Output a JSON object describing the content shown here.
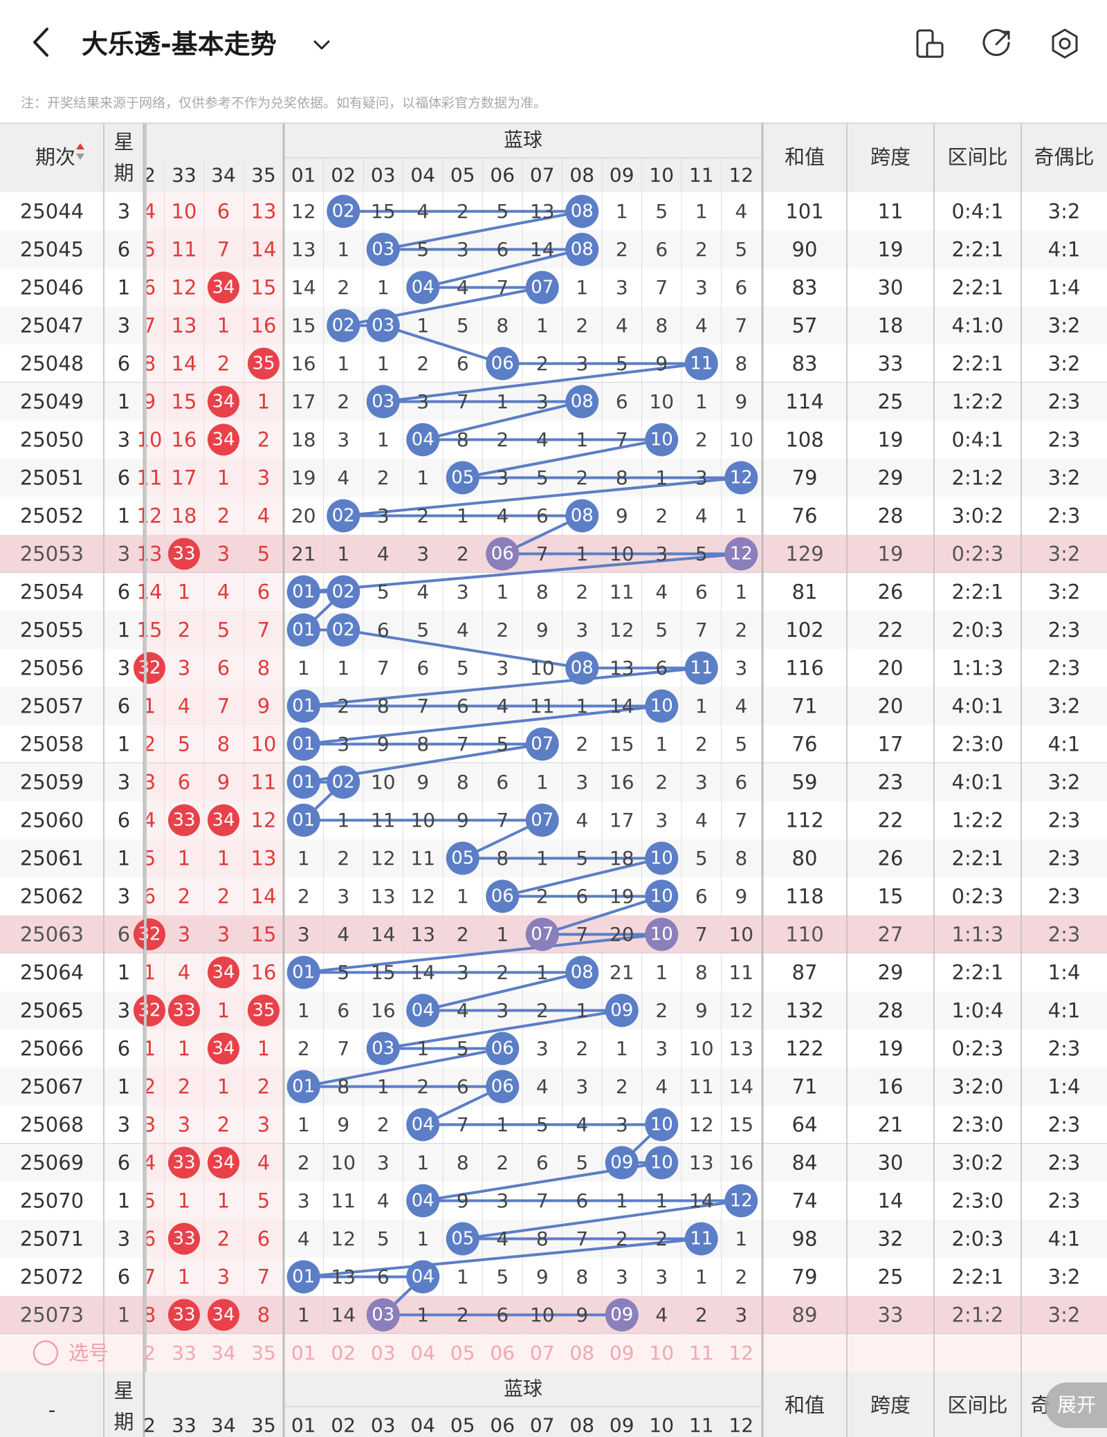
{
  "header": {
    "title": "大乐透-基本走势",
    "icons": [
      "chevron-left-icon",
      "chevron-down-icon",
      "phone-rotate-icon",
      "share-icon",
      "settings-icon"
    ]
  },
  "note": "注：开奖结果来源于网络，仅供参考不作为兑奖依据。如有疑问，以福体彩官方数据为准。",
  "table": {
    "col_period": "期次",
    "col_week": "星期",
    "week_top": "星",
    "week_bottom": "期",
    "blue_group": "蓝球",
    "front_cols": [
      "2",
      "33",
      "34",
      "35"
    ],
    "blue_cols": [
      "01",
      "02",
      "03",
      "04",
      "05",
      "06",
      "07",
      "08",
      "09",
      "10",
      "11",
      "12"
    ],
    "col_sum": "和值",
    "col_span": "跨度",
    "col_zone": "区间比",
    "col_odd": "奇偶比",
    "odd_cut": "奇",
    "footer_period": "-",
    "select_label": "选号",
    "rows": [
      {
        "period": "25044",
        "week": "3",
        "front": [
          "4",
          "10",
          "6",
          "13"
        ],
        "frontHit": [
          false,
          false,
          false,
          false
        ],
        "blue": [
          "12",
          "02",
          "15",
          "4",
          "2",
          "5",
          "13",
          "08",
          "1",
          "5",
          "1",
          "4"
        ],
        "hit": [
          2,
          8
        ],
        "sum": "101",
        "span": "11",
        "zone": "0:4:1",
        "odd": "3:2",
        "hl": false
      },
      {
        "period": "25045",
        "week": "6",
        "front": [
          "5",
          "11",
          "7",
          "14"
        ],
        "frontHit": [
          false,
          false,
          false,
          false
        ],
        "blue": [
          "13",
          "1",
          "03",
          "5",
          "3",
          "6",
          "14",
          "08",
          "2",
          "6",
          "2",
          "5"
        ],
        "hit": [
          3,
          8
        ],
        "sum": "90",
        "span": "19",
        "zone": "2:2:1",
        "odd": "4:1",
        "hl": false
      },
      {
        "period": "25046",
        "week": "1",
        "front": [
          "6",
          "12",
          "34",
          "15"
        ],
        "frontHit": [
          false,
          false,
          true,
          false
        ],
        "blue": [
          "14",
          "2",
          "1",
          "04",
          "4",
          "7",
          "07",
          "1",
          "3",
          "7",
          "3",
          "6"
        ],
        "hit": [
          4,
          7
        ],
        "sum": "83",
        "span": "30",
        "zone": "2:2:1",
        "odd": "1:4",
        "hl": false
      },
      {
        "period": "25047",
        "week": "3",
        "front": [
          "7",
          "13",
          "1",
          "16"
        ],
        "frontHit": [
          false,
          false,
          false,
          false
        ],
        "blue": [
          "15",
          "02",
          "03",
          "1",
          "5",
          "8",
          "1",
          "2",
          "4",
          "8",
          "4",
          "7"
        ],
        "hit": [
          2,
          3
        ],
        "sum": "57",
        "span": "18",
        "zone": "4:1:0",
        "odd": "3:2",
        "hl": false
      },
      {
        "period": "25048",
        "week": "6",
        "front": [
          "8",
          "14",
          "2",
          "35"
        ],
        "frontHit": [
          false,
          false,
          false,
          true
        ],
        "blue": [
          "16",
          "1",
          "1",
          "2",
          "6",
          "06",
          "2",
          "3",
          "5",
          "9",
          "11",
          "8"
        ],
        "hit": [
          6,
          11
        ],
        "sum": "83",
        "span": "33",
        "zone": "2:2:1",
        "odd": "3:2",
        "hl": false
      },
      {
        "period": "25049",
        "week": "1",
        "front": [
          "9",
          "15",
          "34",
          "1"
        ],
        "frontHit": [
          false,
          false,
          true,
          false
        ],
        "blue": [
          "17",
          "2",
          "03",
          "3",
          "7",
          "1",
          "3",
          "08",
          "6",
          "10",
          "1",
          "9"
        ],
        "hit": [
          3,
          8
        ],
        "sum": "114",
        "span": "25",
        "zone": "1:2:2",
        "odd": "2:3",
        "hl": false
      },
      {
        "period": "25050",
        "week": "3",
        "front": [
          "10",
          "16",
          "34",
          "2"
        ],
        "frontHit": [
          false,
          false,
          true,
          false
        ],
        "blue": [
          "18",
          "3",
          "1",
          "04",
          "8",
          "2",
          "4",
          "1",
          "7",
          "10",
          "2",
          "10"
        ],
        "hit": [
          4,
          10
        ],
        "sum": "108",
        "span": "19",
        "zone": "0:4:1",
        "odd": "2:3",
        "hl": false
      },
      {
        "period": "25051",
        "week": "6",
        "front": [
          "11",
          "17",
          "1",
          "3"
        ],
        "frontHit": [
          false,
          false,
          false,
          false
        ],
        "blue": [
          "19",
          "4",
          "2",
          "1",
          "05",
          "3",
          "5",
          "2",
          "8",
          "1",
          "3",
          "12"
        ],
        "hit": [
          5,
          12
        ],
        "sum": "79",
        "span": "29",
        "zone": "2:1:2",
        "odd": "3:2",
        "hl": false
      },
      {
        "period": "25052",
        "week": "1",
        "front": [
          "12",
          "18",
          "2",
          "4"
        ],
        "frontHit": [
          false,
          false,
          false,
          false
        ],
        "blue": [
          "20",
          "02",
          "3",
          "2",
          "1",
          "4",
          "6",
          "08",
          "9",
          "2",
          "4",
          "1"
        ],
        "hit": [
          2,
          8
        ],
        "sum": "76",
        "span": "28",
        "zone": "3:0:2",
        "odd": "2:3",
        "hl": false
      },
      {
        "period": "25053",
        "week": "3",
        "front": [
          "13",
          "33",
          "3",
          "5"
        ],
        "frontHit": [
          false,
          true,
          false,
          false
        ],
        "blue": [
          "21",
          "1",
          "4",
          "3",
          "2",
          "06",
          "7",
          "1",
          "10",
          "3",
          "5",
          "12"
        ],
        "hit": [
          6,
          12
        ],
        "sum": "129",
        "span": "19",
        "zone": "0:2:3",
        "odd": "3:2",
        "hl": true
      },
      {
        "period": "25054",
        "week": "6",
        "front": [
          "14",
          "1",
          "4",
          "6"
        ],
        "frontHit": [
          false,
          false,
          false,
          false
        ],
        "blue": [
          "01",
          "02",
          "5",
          "4",
          "3",
          "1",
          "8",
          "2",
          "11",
          "4",
          "6",
          "1"
        ],
        "hit": [
          1,
          2
        ],
        "sum": "81",
        "span": "26",
        "zone": "2:2:1",
        "odd": "3:2",
        "hl": false
      },
      {
        "period": "25055",
        "week": "1",
        "front": [
          "15",
          "2",
          "5",
          "7"
        ],
        "frontHit": [
          false,
          false,
          false,
          false
        ],
        "blue": [
          "01",
          "02",
          "6",
          "5",
          "4",
          "2",
          "9",
          "3",
          "12",
          "5",
          "7",
          "2"
        ],
        "hit": [
          1,
          2
        ],
        "sum": "102",
        "span": "22",
        "zone": "2:0:3",
        "odd": "2:3",
        "hl": false
      },
      {
        "period": "25056",
        "week": "3",
        "front": [
          "32",
          "3",
          "6",
          "8"
        ],
        "frontHit": [
          true,
          false,
          false,
          false
        ],
        "blue": [
          "1",
          "1",
          "7",
          "6",
          "5",
          "3",
          "10",
          "08",
          "13",
          "6",
          "11",
          "3"
        ],
        "hit": [
          8,
          11
        ],
        "sum": "116",
        "span": "20",
        "zone": "1:1:3",
        "odd": "2:3",
        "hl": false
      },
      {
        "period": "25057",
        "week": "6",
        "front": [
          "1",
          "4",
          "7",
          "9"
        ],
        "frontHit": [
          false,
          false,
          false,
          false
        ],
        "blue": [
          "01",
          "2",
          "8",
          "7",
          "6",
          "4",
          "11",
          "1",
          "14",
          "10",
          "1",
          "4"
        ],
        "hit": [
          1,
          10
        ],
        "sum": "71",
        "span": "20",
        "zone": "4:0:1",
        "odd": "3:2",
        "hl": false
      },
      {
        "period": "25058",
        "week": "1",
        "front": [
          "2",
          "5",
          "8",
          "10"
        ],
        "frontHit": [
          false,
          false,
          false,
          false
        ],
        "blue": [
          "01",
          "3",
          "9",
          "8",
          "7",
          "5",
          "07",
          "2",
          "15",
          "1",
          "2",
          "5"
        ],
        "hit": [
          1,
          7
        ],
        "sum": "76",
        "span": "17",
        "zone": "2:3:0",
        "odd": "4:1",
        "hl": false
      },
      {
        "period": "25059",
        "week": "3",
        "front": [
          "3",
          "6",
          "9",
          "11"
        ],
        "frontHit": [
          false,
          false,
          false,
          false
        ],
        "blue": [
          "01",
          "02",
          "10",
          "9",
          "8",
          "6",
          "1",
          "3",
          "16",
          "2",
          "3",
          "6"
        ],
        "hit": [
          1,
          2
        ],
        "sum": "59",
        "span": "23",
        "zone": "4:0:1",
        "odd": "3:2",
        "hl": false
      },
      {
        "period": "25060",
        "week": "6",
        "front": [
          "4",
          "33",
          "34",
          "12"
        ],
        "frontHit": [
          false,
          true,
          true,
          false
        ],
        "blue": [
          "01",
          "1",
          "11",
          "10",
          "9",
          "7",
          "07",
          "4",
          "17",
          "3",
          "4",
          "7"
        ],
        "hit": [
          1,
          7
        ],
        "sum": "112",
        "span": "22",
        "zone": "1:2:2",
        "odd": "2:3",
        "hl": false
      },
      {
        "period": "25061",
        "week": "1",
        "front": [
          "5",
          "1",
          "1",
          "13"
        ],
        "frontHit": [
          false,
          false,
          false,
          false
        ],
        "blue": [
          "1",
          "2",
          "12",
          "11",
          "05",
          "8",
          "1",
          "5",
          "18",
          "10",
          "5",
          "8"
        ],
        "hit": [
          5,
          10
        ],
        "sum": "80",
        "span": "26",
        "zone": "2:2:1",
        "odd": "2:3",
        "hl": false
      },
      {
        "period": "25062",
        "week": "3",
        "front": [
          "6",
          "2",
          "2",
          "14"
        ],
        "frontHit": [
          false,
          false,
          false,
          false
        ],
        "blue": [
          "2",
          "3",
          "13",
          "12",
          "1",
          "06",
          "2",
          "6",
          "19",
          "10",
          "6",
          "9"
        ],
        "hit": [
          6,
          10
        ],
        "sum": "118",
        "span": "15",
        "zone": "0:2:3",
        "odd": "2:3",
        "hl": false
      },
      {
        "period": "25063",
        "week": "6",
        "front": [
          "32",
          "3",
          "3",
          "15"
        ],
        "frontHit": [
          true,
          false,
          false,
          false
        ],
        "blue": [
          "3",
          "4",
          "14",
          "13",
          "2",
          "1",
          "07",
          "7",
          "20",
          "10",
          "7",
          "10"
        ],
        "hit": [
          7,
          10
        ],
        "sum": "110",
        "span": "27",
        "zone": "1:1:3",
        "odd": "2:3",
        "hl": true
      },
      {
        "period": "25064",
        "week": "1",
        "front": [
          "1",
          "4",
          "34",
          "16"
        ],
        "frontHit": [
          false,
          false,
          true,
          false
        ],
        "blue": [
          "01",
          "5",
          "15",
          "14",
          "3",
          "2",
          "1",
          "08",
          "21",
          "1",
          "8",
          "11"
        ],
        "hit": [
          1,
          8
        ],
        "sum": "87",
        "span": "29",
        "zone": "2:2:1",
        "odd": "1:4",
        "hl": false
      },
      {
        "period": "25065",
        "week": "3",
        "front": [
          "32",
          "33",
          "1",
          "35"
        ],
        "frontHit": [
          true,
          true,
          false,
          true
        ],
        "blue": [
          "1",
          "6",
          "16",
          "04",
          "4",
          "3",
          "2",
          "1",
          "09",
          "2",
          "9",
          "12"
        ],
        "hit": [
          4,
          9
        ],
        "sum": "132",
        "span": "28",
        "zone": "1:0:4",
        "odd": "4:1",
        "hl": false
      },
      {
        "period": "25066",
        "week": "6",
        "front": [
          "1",
          "1",
          "34",
          "1"
        ],
        "frontHit": [
          false,
          false,
          true,
          false
        ],
        "blue": [
          "2",
          "7",
          "03",
          "1",
          "5",
          "06",
          "3",
          "2",
          "1",
          "3",
          "10",
          "13"
        ],
        "hit": [
          3,
          6
        ],
        "sum": "122",
        "span": "19",
        "zone": "0:2:3",
        "odd": "2:3",
        "hl": false
      },
      {
        "period": "25067",
        "week": "1",
        "front": [
          "2",
          "2",
          "1",
          "2"
        ],
        "frontHit": [
          false,
          false,
          false,
          false
        ],
        "blue": [
          "01",
          "8",
          "1",
          "2",
          "6",
          "06",
          "4",
          "3",
          "2",
          "4",
          "11",
          "14"
        ],
        "hit": [
          1,
          6
        ],
        "sum": "71",
        "span": "16",
        "zone": "3:2:0",
        "odd": "1:4",
        "hl": false
      },
      {
        "period": "25068",
        "week": "3",
        "front": [
          "3",
          "3",
          "2",
          "3"
        ],
        "frontHit": [
          false,
          false,
          false,
          false
        ],
        "blue": [
          "1",
          "9",
          "2",
          "04",
          "7",
          "1",
          "5",
          "4",
          "3",
          "10",
          "12",
          "15"
        ],
        "hit": [
          4,
          10
        ],
        "sum": "64",
        "span": "21",
        "zone": "2:3:0",
        "odd": "2:3",
        "hl": false
      },
      {
        "period": "25069",
        "week": "6",
        "front": [
          "4",
          "33",
          "34",
          "4"
        ],
        "frontHit": [
          false,
          true,
          true,
          false
        ],
        "blue": [
          "2",
          "10",
          "3",
          "1",
          "8",
          "2",
          "6",
          "5",
          "09",
          "10",
          "13",
          "16"
        ],
        "hit": [
          9,
          10
        ],
        "sum": "84",
        "span": "30",
        "zone": "3:0:2",
        "odd": "2:3",
        "hl": false
      },
      {
        "period": "25070",
        "week": "1",
        "front": [
          "5",
          "1",
          "1",
          "5"
        ],
        "frontHit": [
          false,
          false,
          false,
          false
        ],
        "blue": [
          "3",
          "11",
          "4",
          "04",
          "9",
          "3",
          "7",
          "6",
          "1",
          "1",
          "14",
          "12"
        ],
        "hit": [
          4,
          12
        ],
        "sum": "74",
        "span": "14",
        "zone": "2:3:0",
        "odd": "2:3",
        "hl": false
      },
      {
        "period": "25071",
        "week": "3",
        "front": [
          "6",
          "33",
          "2",
          "6"
        ],
        "frontHit": [
          false,
          true,
          false,
          false
        ],
        "blue": [
          "4",
          "12",
          "5",
          "1",
          "05",
          "4",
          "8",
          "7",
          "2",
          "2",
          "11",
          "1"
        ],
        "hit": [
          5,
          11
        ],
        "sum": "98",
        "span": "32",
        "zone": "2:0:3",
        "odd": "4:1",
        "hl": false
      },
      {
        "period": "25072",
        "week": "6",
        "front": [
          "7",
          "1",
          "3",
          "7"
        ],
        "frontHit": [
          false,
          false,
          false,
          false
        ],
        "blue": [
          "01",
          "13",
          "6",
          "04",
          "1",
          "5",
          "9",
          "8",
          "3",
          "3",
          "1",
          "2"
        ],
        "hit": [
          1,
          4
        ],
        "sum": "79",
        "span": "25",
        "zone": "2:2:1",
        "odd": "3:2",
        "hl": false
      },
      {
        "period": "25073",
        "week": "1",
        "front": [
          "8",
          "33",
          "34",
          "8"
        ],
        "frontHit": [
          false,
          true,
          true,
          false
        ],
        "blue": [
          "1",
          "14",
          "03",
          "1",
          "2",
          "6",
          "10",
          "9",
          "09",
          "4",
          "2",
          "3"
        ],
        "hit": [
          3,
          9
        ],
        "sum": "89",
        "span": "33",
        "zone": "2:1:2",
        "odd": "3:2",
        "hl": true
      }
    ]
  },
  "float_button": "展开",
  "colors": {
    "blue_ball": "#5b7ec6",
    "blue_ball_hl": "#8a7fba",
    "red_ball": "#e8414a",
    "red_text": "#e23a3a",
    "row_hl": "#f4d7db",
    "header_bg": "#efefef"
  }
}
